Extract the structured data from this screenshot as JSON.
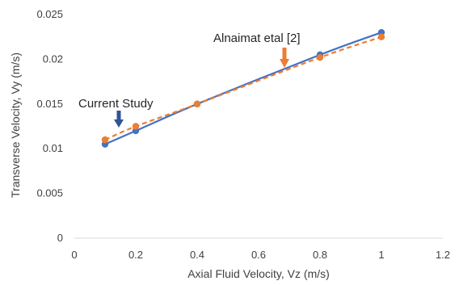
{
  "chart_data": {
    "type": "scatter",
    "title": "",
    "xlabel": "Axial Fluid Velocity, Vz (m/s)",
    "ylabel": "Transverse Velocity, Vy (m/s)",
    "xlim": [
      0,
      1.2
    ],
    "ylim": [
      0,
      0.025
    ],
    "x_ticks": [
      "0",
      "0.2",
      "0.4",
      "0.6",
      "0.8",
      "1",
      "1.2"
    ],
    "y_ticks": [
      "0",
      "0.005",
      "0.01",
      "0.015",
      "0.02",
      "0.025"
    ],
    "grid": false,
    "series": [
      {
        "key": "current",
        "color": "#4472C4",
        "line_style": "solid",
        "x": [
          0.1,
          0.2,
          0.4,
          0.8,
          1.0
        ],
        "y": [
          0.0105,
          0.012,
          0.015,
          0.0205,
          0.023
        ]
      },
      {
        "key": "alnaimat",
        "color": "#ED7D31",
        "line_style": "dashed",
        "x": [
          0.1,
          0.2,
          0.4,
          0.8,
          1.0
        ],
        "y": [
          0.011,
          0.0125,
          0.015,
          0.0202,
          0.0225
        ]
      }
    ],
    "annotations": [
      {
        "text": "Current Study",
        "series": "current",
        "arrow_color": "#2F5597"
      },
      {
        "text": "Alnaimat etal [2]",
        "series": "alnaimat",
        "arrow_color": "#ED7D31"
      }
    ]
  }
}
